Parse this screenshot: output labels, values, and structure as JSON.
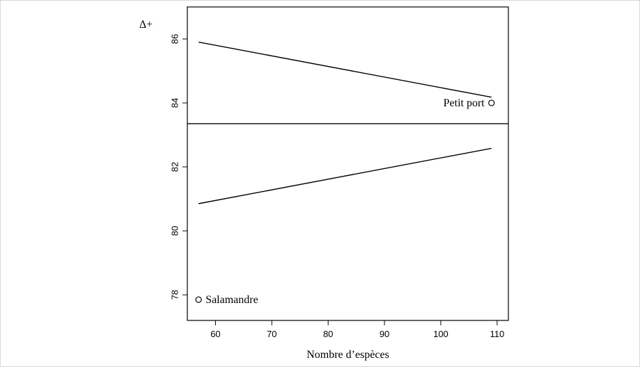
{
  "chart_data": {
    "type": "scatter",
    "xlabel": "Nombre d’espèces",
    "ylabel": "Δ+",
    "xlim": [
      55,
      112
    ],
    "ylim": [
      77.2,
      87.0
    ],
    "x_ticks": [
      60,
      70,
      80,
      90,
      100,
      110
    ],
    "y_ticks": [
      78,
      80,
      82,
      84,
      86
    ],
    "points": [
      {
        "label": "Salamandre",
        "x": 57,
        "y": 77.85
      },
      {
        "label": "Petit port",
        "x": 109,
        "y": 84.0
      }
    ],
    "mean_line": {
      "y": 83.35
    },
    "funnel_lines": [
      {
        "x": [
          57,
          109
        ],
        "y": [
          85.9,
          84.18
        ]
      },
      {
        "x": [
          57,
          109
        ],
        "y": [
          80.85,
          82.58
        ]
      }
    ],
    "grid": false,
    "legend": "none"
  }
}
